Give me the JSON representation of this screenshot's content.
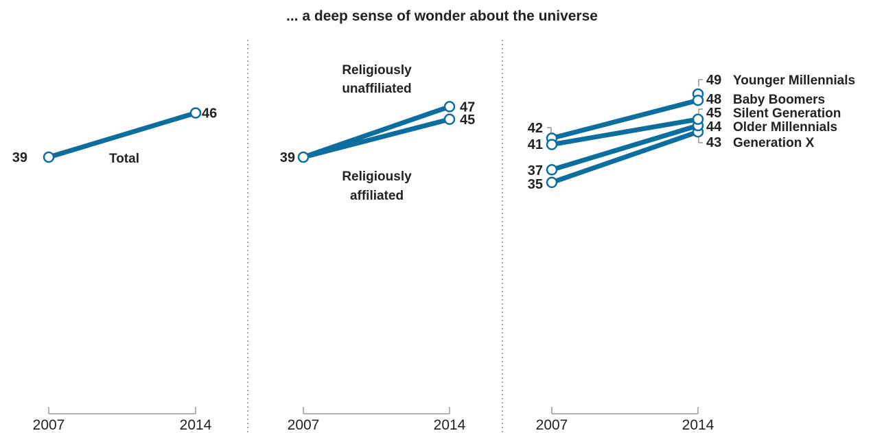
{
  "chart_data": [
    {
      "type": "line",
      "title": "... a deep sense of wonder about the universe",
      "x": [
        "2007",
        "2014"
      ],
      "series": [
        {
          "name": "Total",
          "values": [
            39,
            46
          ]
        }
      ]
    },
    {
      "type": "line",
      "x": [
        "2007",
        "2014"
      ],
      "series": [
        {
          "name": "Religiously unaffiliated",
          "values": [
            39,
            47
          ]
        },
        {
          "name": "Religiously affiliated",
          "values": [
            39,
            45
          ]
        }
      ]
    },
    {
      "type": "line",
      "x": [
        "2007",
        "2014"
      ],
      "series": [
        {
          "name": "Younger Millennials",
          "values": [
            null,
            49
          ]
        },
        {
          "name": "Baby Boomers",
          "values": [
            42,
            48
          ]
        },
        {
          "name": "Silent Generation",
          "values": [
            41,
            45
          ]
        },
        {
          "name": "Older Millennials",
          "values": [
            37,
            44
          ]
        },
        {
          "name": "Generation X",
          "values": [
            35,
            43
          ]
        }
      ]
    }
  ],
  "colors": {
    "line": "#0b6e9e",
    "marker_fill": "#ffffff",
    "text": "#222222",
    "axis": "#999999"
  }
}
